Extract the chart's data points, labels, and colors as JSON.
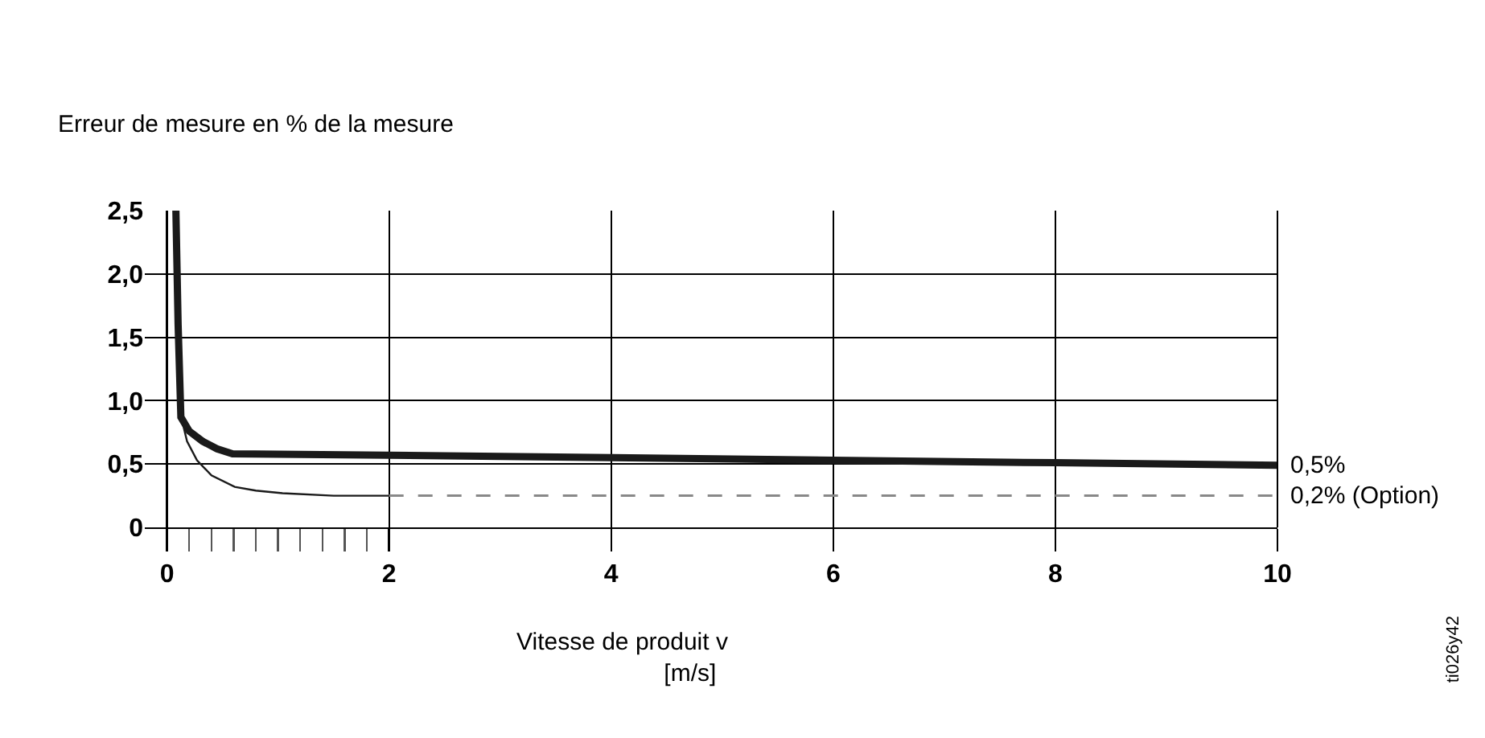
{
  "chart_data": {
    "type": "line",
    "ylabel": "Erreur de mesure en % de la mesure",
    "xlabel": "Vitesse de produit v\n[m/s]",
    "series": [
      {
        "color": "#1a1a1a",
        "x": [
          0.08,
          0.1,
          0.125,
          0.2,
          0.32,
          0.45,
          0.59,
          2,
          4,
          6,
          8,
          10
        ],
        "values": [
          2.5,
          1.6,
          0.87,
          0.76,
          0.68,
          0.62,
          0.58,
          0.57,
          0.55,
          0.53,
          0.51,
          0.49
        ]
      },
      {
        "color": "#1a1a1a",
        "x": [
          0.08,
          0.1,
          0.12,
          0.18,
          0.27,
          0.4,
          0.61,
          0.8,
          1.04,
          1.5,
          2
        ],
        "values": [
          2.5,
          1.5,
          0.9,
          0.68,
          0.53,
          0.41,
          0.32,
          0.29,
          0.27,
          0.25,
          0.25
        ]
      },
      {
        "color": "#888888",
        "line_style": "dashed",
        "x": [
          2,
          10
        ],
        "values": [
          0.25,
          0.25
        ]
      }
    ],
    "xlim": [
      -0.2,
      10
    ],
    "xticks": [
      0,
      {
        "value": 0.2,
        "label": null
      },
      {
        "value": 0.4,
        "label": null
      },
      {
        "value": 0.6,
        "label": null
      },
      {
        "value": 0.8,
        "label": null
      },
      {
        "value": 1,
        "label": null
      },
      {
        "value": 1.2,
        "label": null
      },
      {
        "value": 1.4,
        "label": null
      },
      {
        "value": 1.6,
        "label": null
      },
      {
        "value": 1.8,
        "label": null
      },
      2,
      4,
      6,
      8,
      10
    ],
    "ylim": [
      0,
      2.5
    ],
    "yticks": [
      0,
      {
        "value": 0.5,
        "label": "0,5"
      },
      {
        "value": 1,
        "label": "1,0"
      },
      {
        "value": 1.5,
        "label": "1,5"
      },
      {
        "value": 2,
        "label": "2,0"
      },
      {
        "value": 2.5,
        "label": "2,5"
      }
    ],
    "grid": true,
    "marker": "none",
    "annotations": [
      {
        "text": "0,5%",
        "x": 10,
        "y": 0.49
      },
      {
        "text": "0,2% (Option)",
        "x": 10,
        "y": 0.25
      },
      "ti026y42"
    ]
  }
}
